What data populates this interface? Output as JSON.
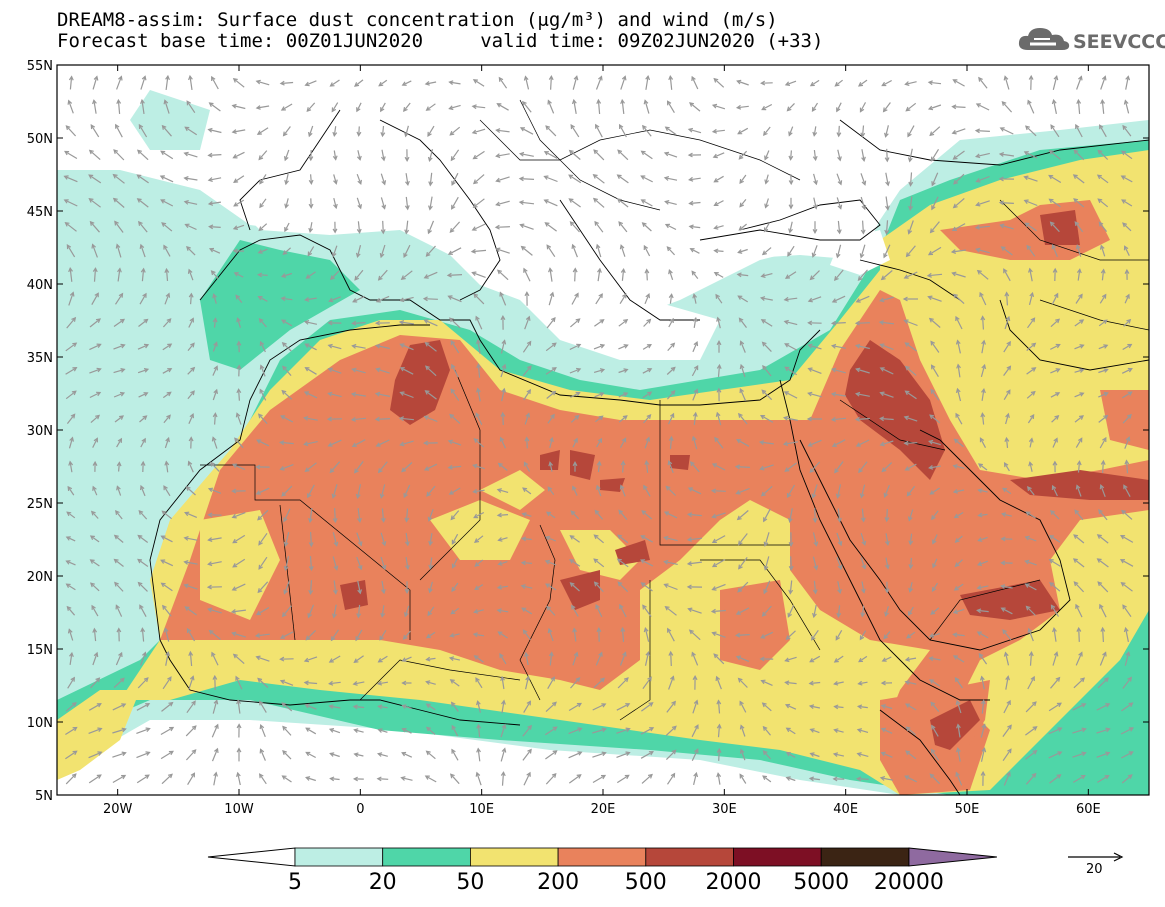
{
  "header": {
    "line1": "DREAM8-assim: Surface dust concentration (μg/m³) and wind (m/s)",
    "line2": "Forecast base time: 00Z01JUN2020     valid time: 09Z02JUN2020 (+33)"
  },
  "logo": {
    "text": "SEEVCCC",
    "icon": "cloud-icon"
  },
  "map": {
    "lat_labels": [
      "55N",
      "50N",
      "45N",
      "40N",
      "35N",
      "30N",
      "25N",
      "20N",
      "15N",
      "10N",
      "5N"
    ],
    "lon_labels": [
      "20W",
      "10W",
      "0",
      "10E",
      "20E",
      "30E",
      "40E",
      "50E",
      "60E"
    ],
    "extent": {
      "lon_min": -25,
      "lon_max": 65,
      "lat_min": 5,
      "lat_max": 55
    }
  },
  "colorbar": {
    "labels": [
      "5",
      "20",
      "50",
      "200",
      "500",
      "2000",
      "5000",
      "20000"
    ],
    "colors": [
      "#ffffff",
      "#bdeee4",
      "#4fd6a8",
      "#f2e370",
      "#e9825c",
      "#b6473a",
      "#7d0f24",
      "#3b2414",
      "#8f6aa0"
    ]
  },
  "wind_reference": {
    "value": "20"
  }
}
